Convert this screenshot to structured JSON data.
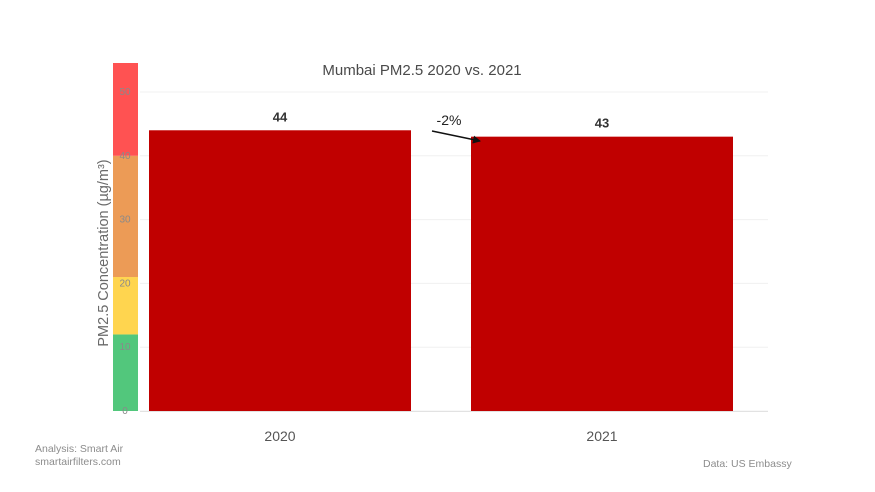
{
  "chart_data": {
    "type": "bar",
    "title": "Mumbai PM2.5 2020 vs. 2021",
    "xlabel": "",
    "ylabel": "PM2.5 Concentration (µg/m³)",
    "categories": [
      "2020",
      "2021"
    ],
    "values": [
      44,
      43
    ],
    "data_labels": [
      "44",
      "43"
    ],
    "ylim": [
      0,
      55
    ],
    "yticks": [
      "0",
      "10",
      "20",
      "30",
      "40",
      "50"
    ],
    "change_label": "-2%",
    "grid": true,
    "bar_color": "#c00000",
    "aqi_bands": [
      {
        "from": 0,
        "to": 12,
        "color": "#52c77c"
      },
      {
        "from": 12,
        "to": 21,
        "color": "#ffd54f"
      },
      {
        "from": 21,
        "to": 40,
        "color": "#ec9b56"
      },
      {
        "from": 40,
        "to": 55,
        "color": "#ff5252"
      }
    ]
  },
  "credits": {
    "analysis": "Analysis: Smart Air",
    "website": "smartairfilters.com",
    "source": "Data: US Embassy"
  }
}
